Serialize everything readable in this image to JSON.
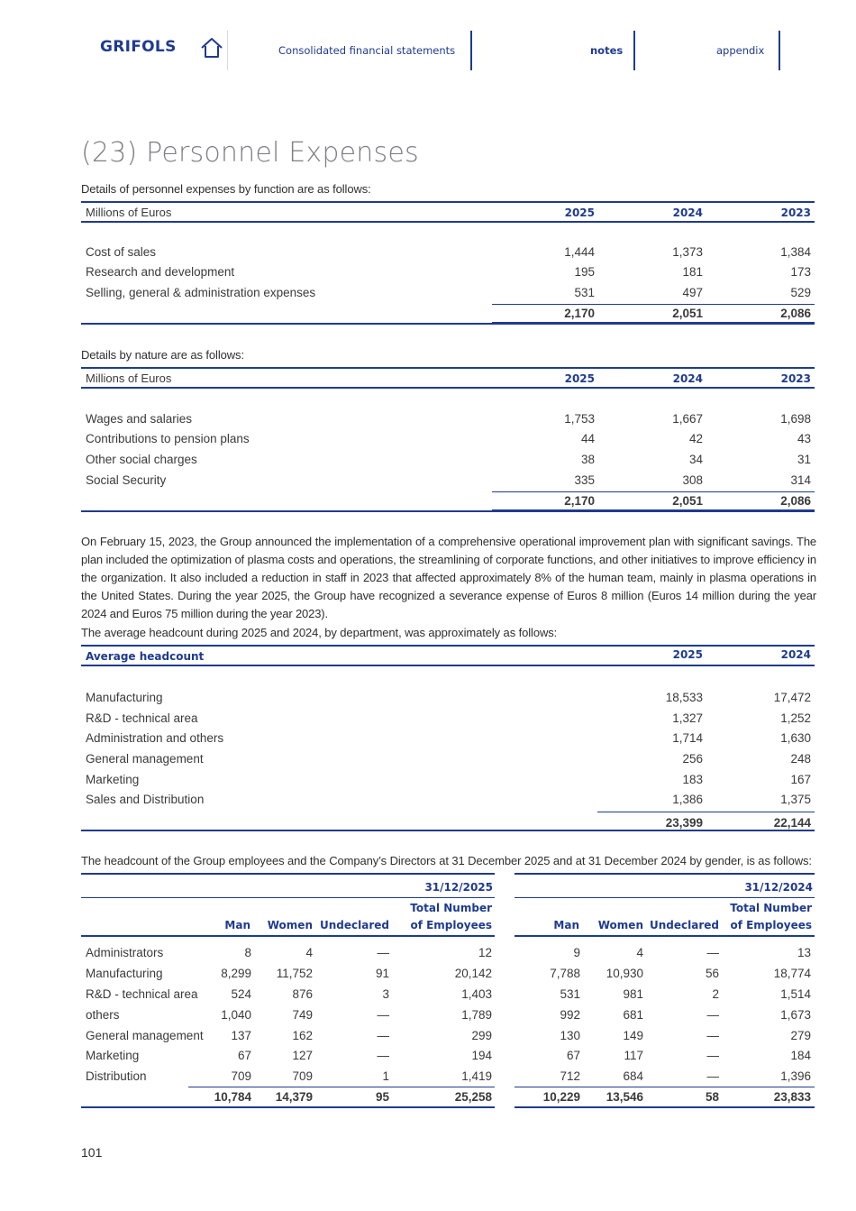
{
  "header": {
    "logo": "GRIFOLS",
    "home_icon": "home-icon",
    "nav": [
      "Consolidated financial statements",
      "notes",
      "appendix"
    ],
    "active_nav": "notes",
    "accent": "#1f3b8f"
  },
  "title": "(23) Personnel Expenses",
  "by_function": {
    "intro": "Details of personnel expenses by function are as follows:",
    "unit": "Millions of Euros",
    "years": [
      "2025",
      "2024",
      "2023"
    ],
    "rows": [
      {
        "label": "Cost of sales",
        "values": [
          "1,444",
          "1,373",
          "1,384"
        ]
      },
      {
        "label": "Research and development",
        "values": [
          "195",
          "181",
          "173"
        ]
      },
      {
        "label": "Selling, general & administration expenses",
        "values": [
          "531",
          "497",
          "529"
        ]
      }
    ],
    "totals": [
      "2,170",
      "2,051",
      "2,086"
    ]
  },
  "by_nature": {
    "intro": "Details by nature are as follows:",
    "unit": "Millions of Euros",
    "years": [
      "2025",
      "2024",
      "2023"
    ],
    "rows": [
      {
        "label": "Wages and salaries",
        "values": [
          "1,753",
          "1,667",
          "1,698"
        ]
      },
      {
        "label": "Contributions to pension plans",
        "values": [
          "44",
          "42",
          "43"
        ]
      },
      {
        "label": "Other social charges",
        "values": [
          "38",
          "34",
          "31"
        ]
      },
      {
        "label": "Social Security",
        "values": [
          "335",
          "308",
          "314"
        ]
      }
    ],
    "totals": [
      "2,170",
      "2,051",
      "2,086"
    ]
  },
  "paragraph": "On February 15, 2023, the Group announced the implementation of a comprehensive operational improvement plan with significant savings. The plan included the optimization of plasma costs and operations, the streamlining of corporate functions, and other initiatives to improve efficiency in the organization. It also included a reduction in staff in 2023 that affected approximately 8% of the human team, mainly in plasma operations in the United States. During the year 2025, the Group have recognized a  severance expense of Euros 8 million (Euros 14 million during the year 2024 and Euros 75 million during the year 2023).",
  "headcount": {
    "intro": "The average headcount during 2025 and 2024, by department, was approximately as follows:",
    "header_label": "Average headcount",
    "years": [
      "2025",
      "2024"
    ],
    "rows": [
      {
        "label": "Manufacturing",
        "values": [
          "18,533",
          "17,472"
        ]
      },
      {
        "label": "R&D - technical area",
        "values": [
          "1,327",
          "1,252"
        ]
      },
      {
        "label": "Administration and others",
        "values": [
          "1,714",
          "1,630"
        ]
      },
      {
        "label": "General management",
        "values": [
          "256",
          "248"
        ]
      },
      {
        "label": "Marketing",
        "values": [
          "183",
          "167"
        ]
      },
      {
        "label": "Sales and Distribution",
        "values": [
          "1,386",
          "1,375"
        ]
      }
    ],
    "totals": [
      "23,399",
      "22,144"
    ]
  },
  "gender": {
    "intro": "The headcount of the Group employees and the Company’s Directors at 31 December 2025 and at 31 December 2024 by gender, is as follows:",
    "dates": [
      "31/12/2025",
      "31/12/2024"
    ],
    "col_man": "Man",
    "col_women": "Women",
    "col_undeclared": "Undeclared",
    "col_total_1": "Total Number",
    "col_total_2": "of Employees",
    "rows": [
      {
        "label": "Administrators",
        "values": [
          "8",
          "4",
          "—",
          "12",
          "9",
          "4",
          "—",
          "13"
        ]
      },
      {
        "label": "Manufacturing",
        "values": [
          "8,299",
          "11,752",
          "91",
          "20,142",
          "7,788",
          "10,930",
          "56",
          "18,774"
        ]
      },
      {
        "label": "R&D - technical area",
        "values": [
          "524",
          "876",
          "3",
          "1,403",
          "531",
          "981",
          "2",
          "1,514"
        ]
      },
      {
        "label": "others",
        "values": [
          "1,040",
          "749",
          "—",
          "1,789",
          "992",
          "681",
          "—",
          "1,673"
        ]
      },
      {
        "label": "General management",
        "values": [
          "137",
          "162",
          "—",
          "299",
          "130",
          "149",
          "—",
          "279"
        ]
      },
      {
        "label": "Marketing",
        "values": [
          "67",
          "127",
          "—",
          "194",
          "67",
          "117",
          "—",
          "184"
        ]
      },
      {
        "label": "Distribution",
        "values": [
          "709",
          "709",
          "1",
          "1,419",
          "712",
          "684",
          "—",
          "1,396"
        ]
      }
    ],
    "totals": [
      "10,784",
      "14,379",
      "95",
      "25,258",
      "10,229",
      "13,546",
      "58",
      "23,833"
    ]
  },
  "page_number": "101"
}
